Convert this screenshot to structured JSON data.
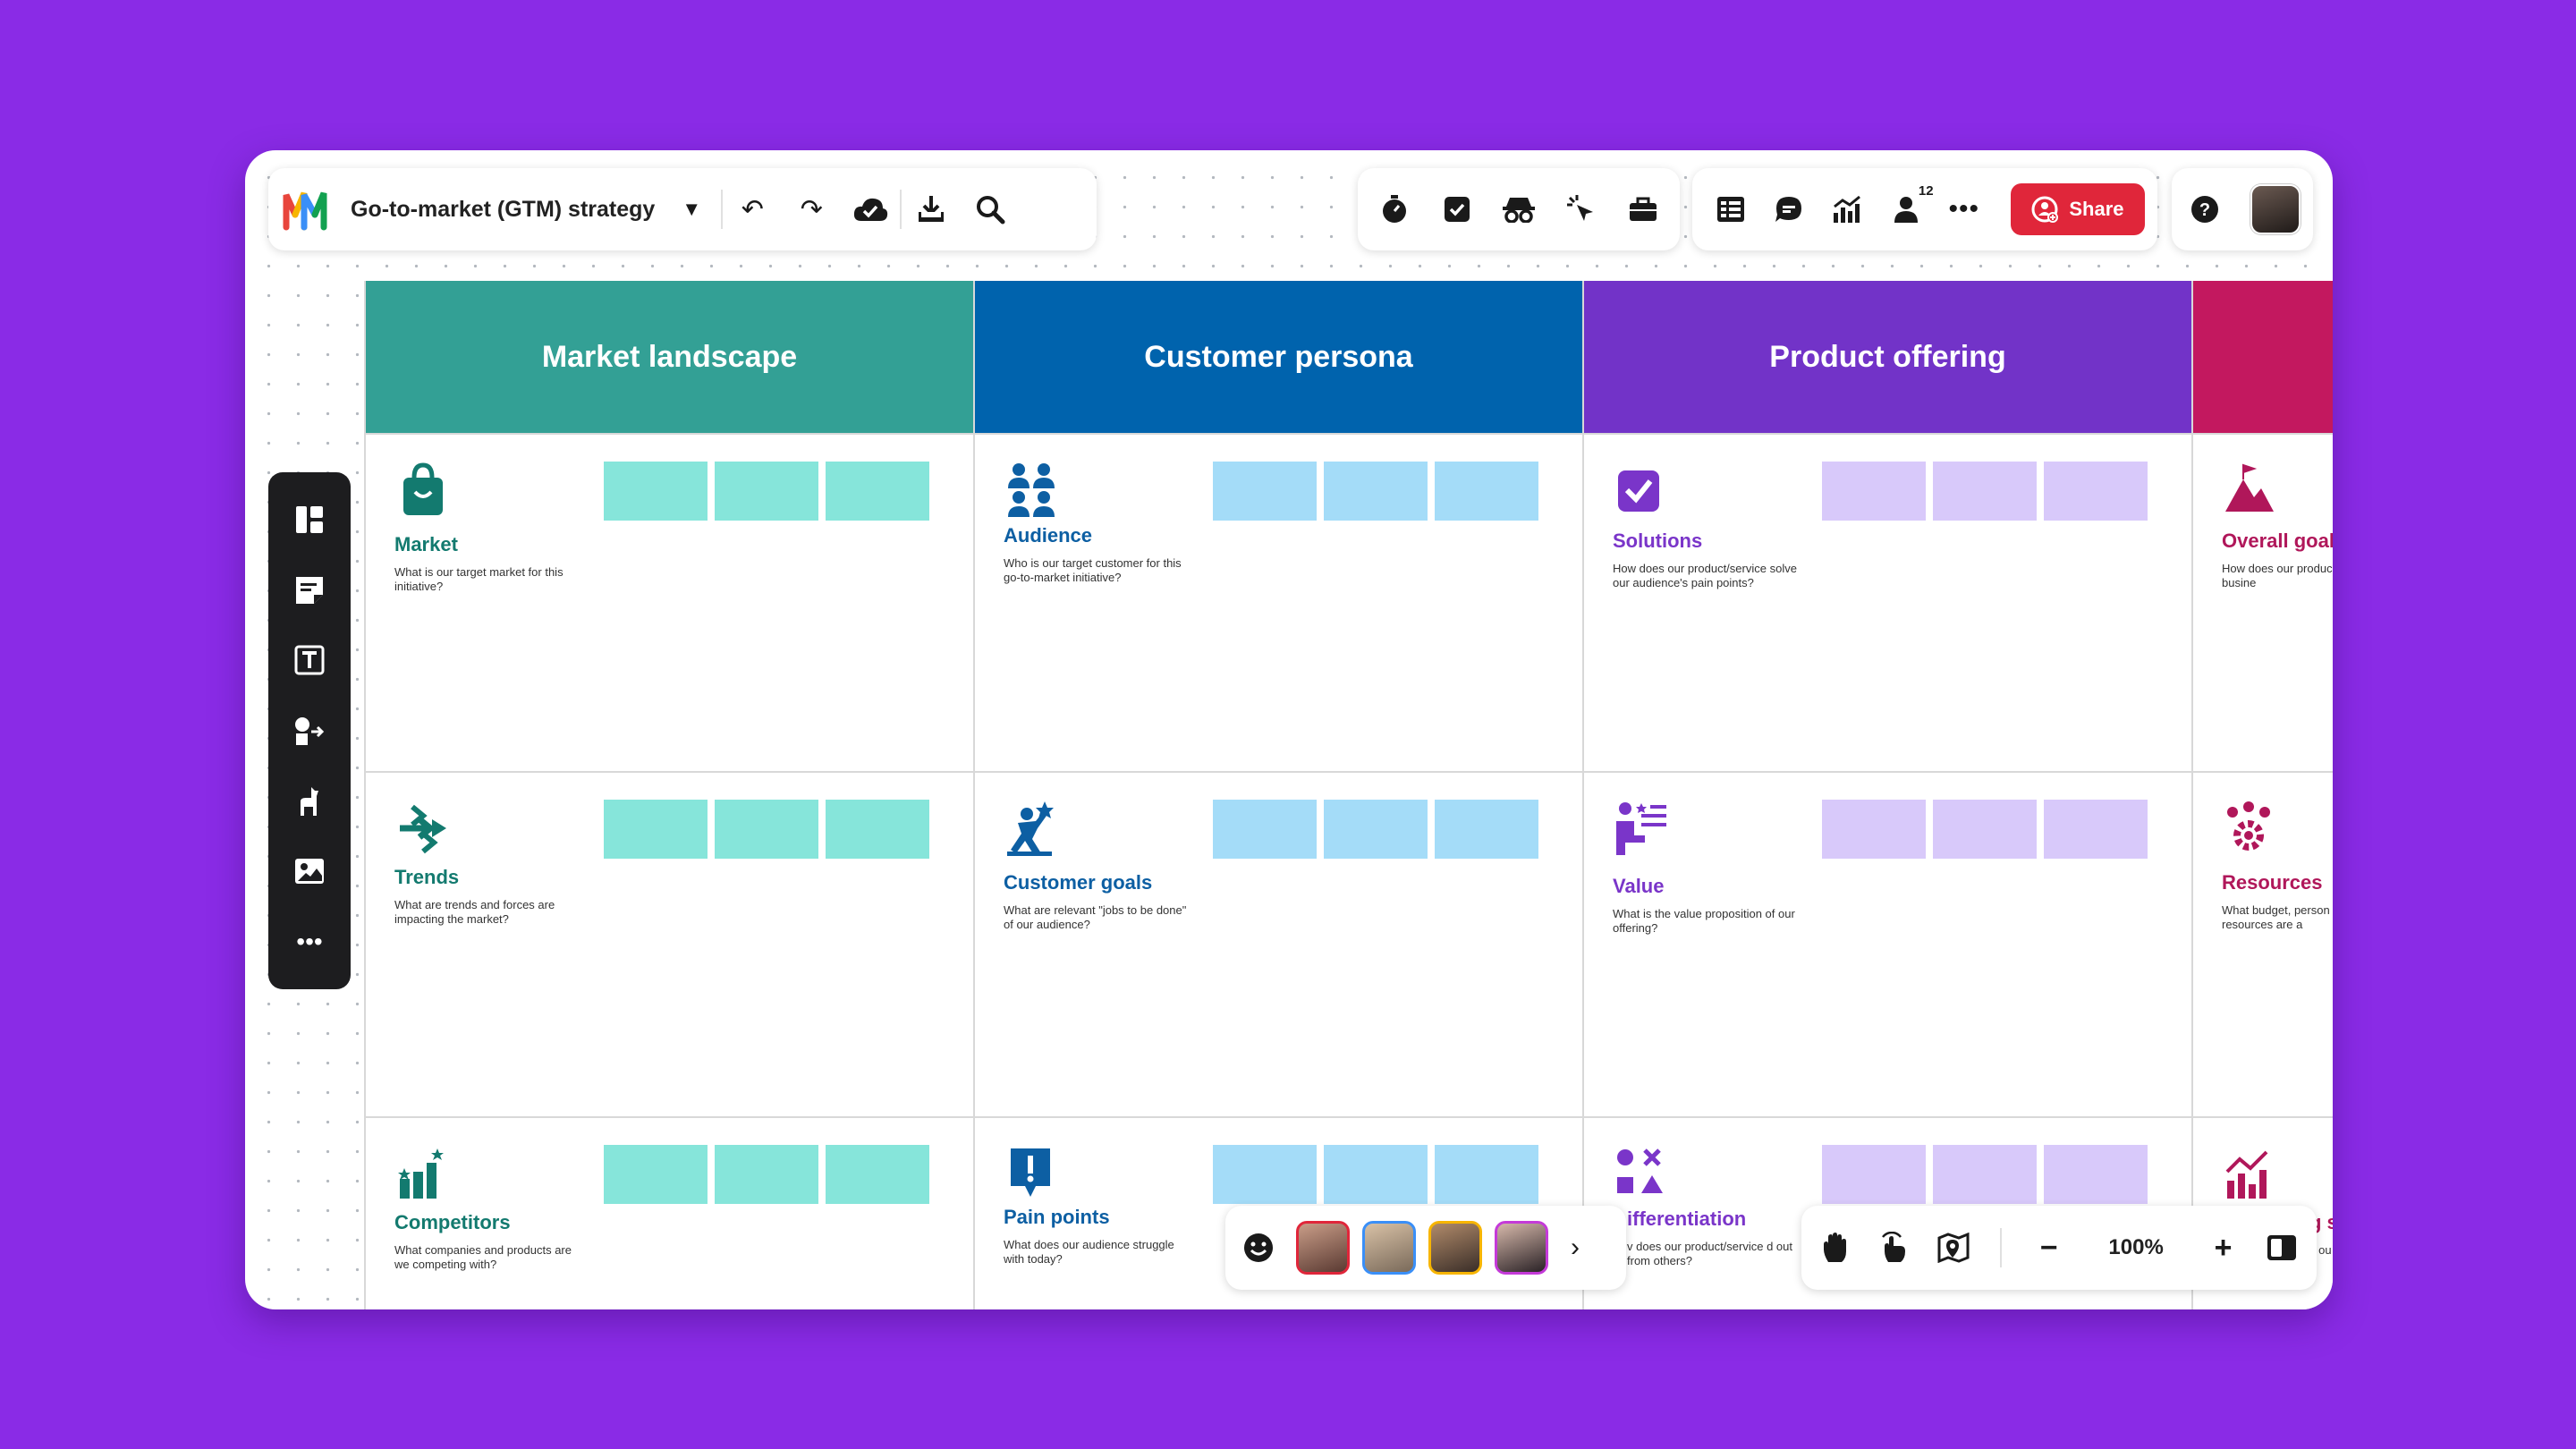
{
  "toolbar": {
    "board_title": "Go-to-market (GTM) strategy",
    "share_label": "Share",
    "collaborator_count": "12"
  },
  "columns": [
    {
      "title": "Market landscape",
      "header_color": "#33a095",
      "text_color": "#137a6f",
      "sticky_color": "#86e5da",
      "cells": [
        {
          "icon": "shopping-bag-icon",
          "title": "Market",
          "desc": "What is our target market for this initiative?"
        },
        {
          "icon": "trend-arrows-icon",
          "title": "Trends",
          "desc": "What are trends and forces are impacting the market?"
        },
        {
          "icon": "bar-chart-stars-icon",
          "title": "Competitors",
          "desc": "What companies and products are we competing with?"
        }
      ]
    },
    {
      "title": "Customer persona",
      "header_color": "#0063ad",
      "text_color": "#0d5fa3",
      "sticky_color": "#a4dcf8",
      "cells": [
        {
          "icon": "people-group-icon",
          "title": "Audience",
          "desc": "Who is our target customer for this go-to-market initiative?"
        },
        {
          "icon": "person-goal-icon",
          "title": "Customer goals",
          "desc": "What are relevant \"jobs to be done\" of our audience?"
        },
        {
          "icon": "alert-badge-icon",
          "title": "Pain points",
          "desc": "What does our audience struggle with today?"
        }
      ]
    },
    {
      "title": "Product offering",
      "header_color": "#7233c8",
      "text_color": "#7a35c9",
      "sticky_color": "#d8c9fa",
      "cells": [
        {
          "icon": "checkbox-icon",
          "title": "Solutions",
          "desc": "How does our product/service solve our audience's pain points?"
        },
        {
          "icon": "person-list-icon",
          "title": "Value",
          "desc": "What is the value proposition of our offering?"
        },
        {
          "icon": "shapes-icon",
          "title": "ifferentiation",
          "desc": "v does our product/service d out from others?"
        }
      ]
    },
    {
      "title": "",
      "header_color": "#c3185f",
      "text_color": "#b0175a",
      "sticky_color": "#f4c1d6",
      "cells": [
        {
          "icon": "mountain-flag-icon",
          "title": "Overall goal",
          "desc": "How does our produc align with our busine"
        },
        {
          "icon": "gear-people-icon",
          "title": "Resources",
          "desc": "What budget, person other resources are a"
        },
        {
          "icon": "growth-chart-icon",
          "title": "g s",
          "desc": "c ou cess"
        }
      ]
    }
  ],
  "zoom": {
    "level": "100%"
  }
}
